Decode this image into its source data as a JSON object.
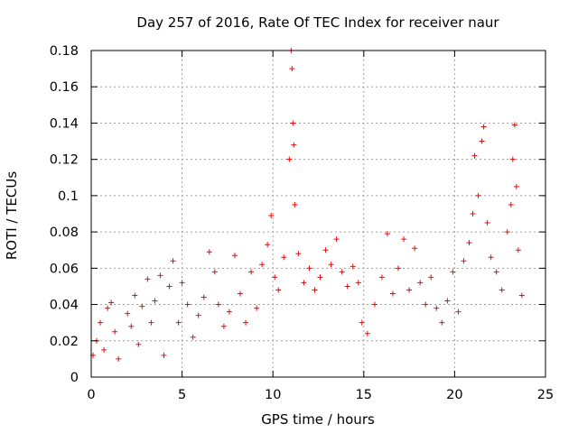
{
  "chart_data": {
    "type": "scatter",
    "title": "Day 257 of 2016, Rate Of TEC Index for receiver naur",
    "xlabel": "GPS time / hours",
    "ylabel": "ROTI / TECUs",
    "xlim": [
      0,
      25
    ],
    "ylim": [
      0,
      0.18
    ],
    "xticks": [
      0,
      5,
      10,
      15,
      20,
      25
    ],
    "xtick_labels": [
      "0",
      "5",
      "10",
      "15",
      "20",
      "25"
    ],
    "yticks": [
      0,
      0.02,
      0.04,
      0.06,
      0.08,
      0.1,
      0.12,
      0.14,
      0.16,
      0.18
    ],
    "ytick_labels": [
      "0",
      "0.02",
      "0.04",
      "0.06",
      "0.08",
      "0.1",
      "0.12",
      "0.14",
      "0.16",
      "0.18"
    ],
    "grid": true,
    "marker": "+",
    "marker_color": "#ff0000",
    "series": [
      {
        "name": "ROTI",
        "points": [
          [
            0.1,
            0.012
          ],
          [
            0.3,
            0.02
          ],
          [
            0.5,
            0.03
          ],
          [
            0.7,
            0.015
          ],
          [
            0.9,
            0.038
          ],
          [
            1.1,
            0.041
          ],
          [
            1.3,
            0.025
          ],
          [
            1.5,
            0.01
          ],
          [
            2.0,
            0.035
          ],
          [
            2.2,
            0.028
          ],
          [
            2.4,
            0.045
          ],
          [
            2.6,
            0.018
          ],
          [
            2.8,
            0.039
          ],
          [
            3.1,
            0.054
          ],
          [
            3.3,
            0.03
          ],
          [
            3.5,
            0.042
          ],
          [
            3.8,
            0.056
          ],
          [
            4.0,
            0.012
          ],
          [
            4.3,
            0.05
          ],
          [
            4.5,
            0.064
          ],
          [
            4.8,
            0.03
          ],
          [
            5.0,
            0.052
          ],
          [
            5.3,
            0.04
          ],
          [
            5.6,
            0.022
          ],
          [
            5.9,
            0.034
          ],
          [
            6.2,
            0.044
          ],
          [
            6.5,
            0.069
          ],
          [
            6.8,
            0.058
          ],
          [
            7.0,
            0.04
          ],
          [
            7.3,
            0.028
          ],
          [
            7.6,
            0.036
          ],
          [
            7.9,
            0.067
          ],
          [
            8.2,
            0.046
          ],
          [
            8.5,
            0.03
          ],
          [
            8.8,
            0.058
          ],
          [
            9.1,
            0.038
          ],
          [
            9.4,
            0.062
          ],
          [
            9.7,
            0.073
          ],
          [
            9.9,
            0.089
          ],
          [
            10.1,
            0.055
          ],
          [
            10.3,
            0.048
          ],
          [
            10.6,
            0.066
          ],
          [
            10.9,
            0.12
          ],
          [
            11.0,
            0.18
          ],
          [
            11.05,
            0.17
          ],
          [
            11.1,
            0.14
          ],
          [
            11.15,
            0.128
          ],
          [
            11.2,
            0.095
          ],
          [
            11.4,
            0.068
          ],
          [
            11.7,
            0.052
          ],
          [
            12.0,
            0.06
          ],
          [
            12.3,
            0.048
          ],
          [
            12.6,
            0.055
          ],
          [
            12.9,
            0.07
          ],
          [
            13.2,
            0.062
          ],
          [
            13.5,
            0.076
          ],
          [
            13.8,
            0.058
          ],
          [
            14.1,
            0.05
          ],
          [
            14.4,
            0.061
          ],
          [
            14.7,
            0.052
          ],
          [
            14.9,
            0.03
          ],
          [
            15.2,
            0.024
          ],
          [
            15.6,
            0.04
          ],
          [
            16.0,
            0.055
          ],
          [
            16.3,
            0.079
          ],
          [
            16.6,
            0.046
          ],
          [
            16.9,
            0.06
          ],
          [
            17.2,
            0.076
          ],
          [
            17.5,
            0.048
          ],
          [
            17.8,
            0.071
          ],
          [
            18.1,
            0.052
          ],
          [
            18.4,
            0.04
          ],
          [
            18.7,
            0.055
          ],
          [
            19.0,
            0.038
          ],
          [
            19.3,
            0.03
          ],
          [
            19.6,
            0.042
          ],
          [
            19.9,
            0.058
          ],
          [
            20.2,
            0.036
          ],
          [
            20.5,
            0.064
          ],
          [
            20.8,
            0.074
          ],
          [
            21.0,
            0.09
          ],
          [
            21.1,
            0.122
          ],
          [
            21.3,
            0.1
          ],
          [
            21.5,
            0.13
          ],
          [
            21.6,
            0.138
          ],
          [
            21.8,
            0.085
          ],
          [
            22.0,
            0.066
          ],
          [
            22.3,
            0.058
          ],
          [
            22.6,
            0.048
          ],
          [
            22.9,
            0.08
          ],
          [
            23.1,
            0.095
          ],
          [
            23.2,
            0.12
          ],
          [
            23.3,
            0.139
          ],
          [
            23.4,
            0.105
          ],
          [
            23.5,
            0.07
          ],
          [
            23.7,
            0.045
          ]
        ]
      }
    ]
  }
}
